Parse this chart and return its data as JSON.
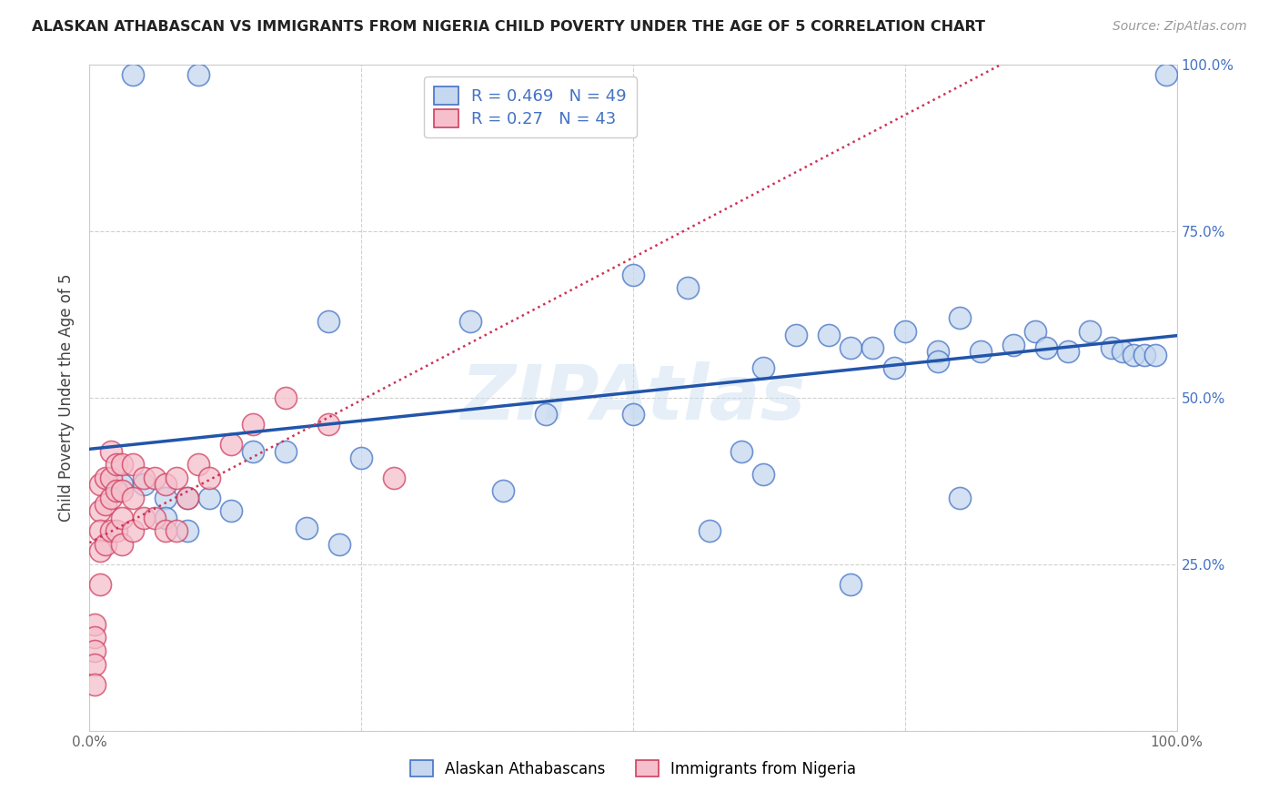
{
  "title": "ALASKAN ATHABASCAN VS IMMIGRANTS FROM NIGERIA CHILD POVERTY UNDER THE AGE OF 5 CORRELATION CHART",
  "source": "Source: ZipAtlas.com",
  "ylabel": "Child Poverty Under the Age of 5",
  "xlim": [
    0,
    1.0
  ],
  "ylim": [
    0,
    1.0
  ],
  "xticks": [
    0.0,
    0.25,
    0.5,
    0.75,
    1.0
  ],
  "xtick_labels": [
    "0.0%",
    "",
    "",
    "",
    "100.0%"
  ],
  "yticks": [
    0.0,
    0.25,
    0.5,
    0.75,
    1.0
  ],
  "ytick_labels_left": [
    "",
    "",
    "",
    "",
    ""
  ],
  "ytick_labels_right": [
    "",
    "25.0%",
    "50.0%",
    "75.0%",
    "100.0%"
  ],
  "blue_fill": "#c5d8f0",
  "blue_edge": "#4472c4",
  "pink_fill": "#f5c0cc",
  "pink_edge": "#d04060",
  "blue_line_color": "#2255aa",
  "pink_line_color": "#cc3355",
  "R_blue": 0.469,
  "N_blue": 49,
  "R_pink": 0.27,
  "N_pink": 43,
  "legend_label_blue": "Alaskan Athabascans",
  "legend_label_pink": "Immigrants from Nigeria",
  "watermark": "ZIPAtlas",
  "background_color": "#ffffff",
  "grid_color": "#cccccc",
  "blue_x": [
    0.04,
    0.1,
    0.5,
    0.55,
    0.22,
    0.35,
    0.42,
    0.5,
    0.6,
    0.62,
    0.03,
    0.05,
    0.07,
    0.09,
    0.11,
    0.13,
    0.07,
    0.09,
    0.15,
    0.18,
    0.25,
    0.65,
    0.68,
    0.7,
    0.72,
    0.75,
    0.78,
    0.8,
    0.82,
    0.85,
    0.87,
    0.88,
    0.9,
    0.92,
    0.94,
    0.95,
    0.96,
    0.97,
    0.98,
    0.99,
    0.62,
    0.74,
    0.78,
    0.38,
    0.2,
    0.23,
    0.57,
    0.7,
    0.8
  ],
  "blue_y": [
    0.985,
    0.985,
    0.685,
    0.665,
    0.615,
    0.615,
    0.475,
    0.475,
    0.42,
    0.385,
    0.37,
    0.37,
    0.35,
    0.35,
    0.35,
    0.33,
    0.32,
    0.3,
    0.42,
    0.42,
    0.41,
    0.595,
    0.595,
    0.575,
    0.575,
    0.6,
    0.57,
    0.62,
    0.57,
    0.58,
    0.6,
    0.575,
    0.57,
    0.6,
    0.575,
    0.57,
    0.565,
    0.565,
    0.565,
    0.985,
    0.545,
    0.545,
    0.555,
    0.36,
    0.305,
    0.28,
    0.3,
    0.22,
    0.35
  ],
  "pink_x": [
    0.005,
    0.005,
    0.005,
    0.005,
    0.005,
    0.01,
    0.01,
    0.01,
    0.01,
    0.01,
    0.015,
    0.015,
    0.015,
    0.02,
    0.02,
    0.02,
    0.02,
    0.025,
    0.025,
    0.025,
    0.03,
    0.03,
    0.03,
    0.03,
    0.04,
    0.04,
    0.04,
    0.05,
    0.05,
    0.06,
    0.06,
    0.07,
    0.07,
    0.08,
    0.08,
    0.09,
    0.1,
    0.11,
    0.13,
    0.15,
    0.18,
    0.22,
    0.28
  ],
  "pink_y": [
    0.16,
    0.14,
    0.12,
    0.1,
    0.07,
    0.37,
    0.33,
    0.3,
    0.27,
    0.22,
    0.38,
    0.34,
    0.28,
    0.42,
    0.38,
    0.35,
    0.3,
    0.4,
    0.36,
    0.3,
    0.4,
    0.36,
    0.32,
    0.28,
    0.4,
    0.35,
    0.3,
    0.38,
    0.32,
    0.38,
    0.32,
    0.37,
    0.3,
    0.38,
    0.3,
    0.35,
    0.4,
    0.38,
    0.43,
    0.46,
    0.5,
    0.46,
    0.38
  ]
}
